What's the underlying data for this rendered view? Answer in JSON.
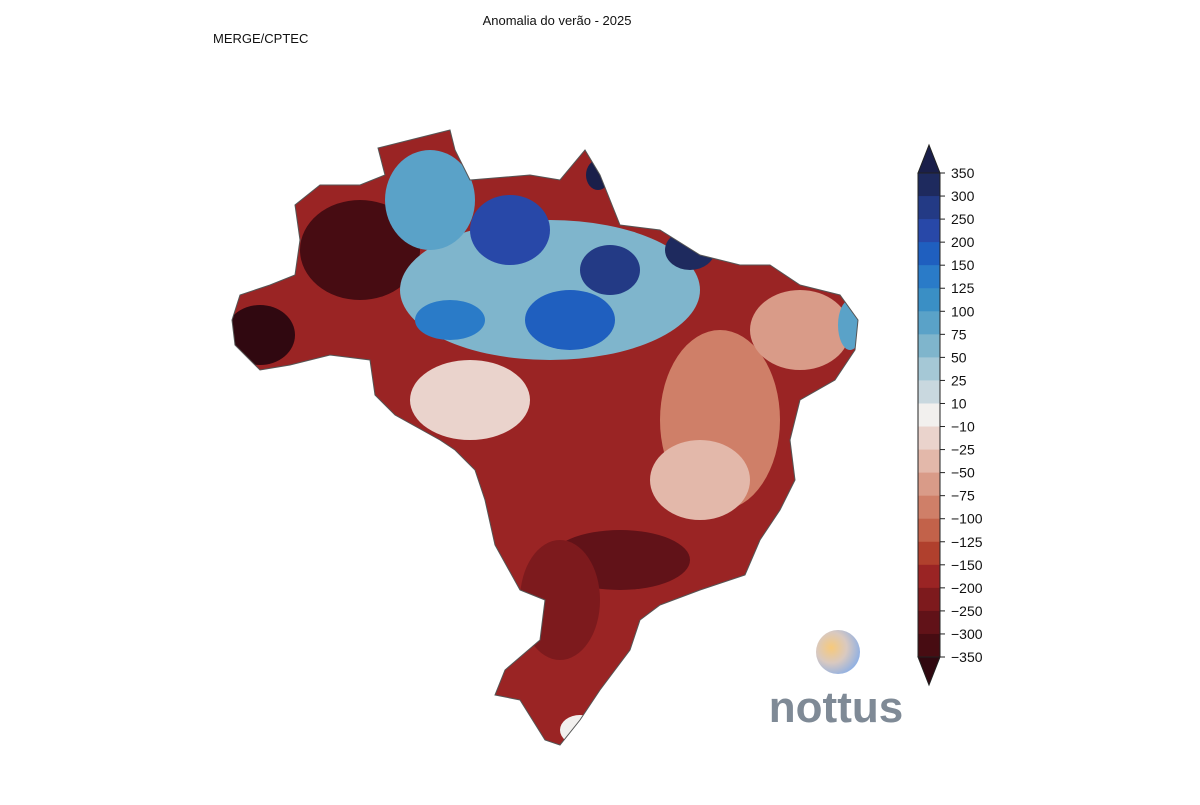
{
  "header": {
    "title": "Anomalia do verão - 2025",
    "source": "MERGE/CPTEC"
  },
  "colorbar": {
    "ticks": [
      350,
      300,
      250,
      200,
      150,
      125,
      100,
      75,
      50,
      25,
      10,
      {
        "value": -10,
        "label": "−10"
      },
      {
        "value": -25,
        "label": "−25"
      },
      {
        "value": -50,
        "label": "−50"
      },
      {
        "value": -75,
        "label": "−75"
      },
      {
        "value": -100,
        "label": "−100"
      },
      {
        "value": -125,
        "label": "−125"
      },
      {
        "value": -150,
        "label": "−150"
      },
      {
        "value": -200,
        "label": "−200"
      },
      {
        "value": -250,
        "label": "−250"
      },
      {
        "value": -300,
        "label": "−300"
      },
      {
        "value": -350,
        "label": "−350"
      }
    ],
    "colors": [
      "#1a1f4a",
      "#1e2a5e",
      "#233a85",
      "#2848a8",
      "#1f5fbf",
      "#2a7bc8",
      "#3a8fc5",
      "#5aa2c8",
      "#7fb5cc",
      "#a5c8d6",
      "#c9d8df",
      "#f2f0ee",
      "#ead3cc",
      "#e3b8aa",
      "#d99b88",
      "#cf7f68",
      "#c2624a",
      "#b0402d",
      "#9a2424",
      "#7d1a1d",
      "#611218",
      "#470c12",
      "#300810"
    ]
  },
  "logo": {
    "text": "nottus"
  }
}
